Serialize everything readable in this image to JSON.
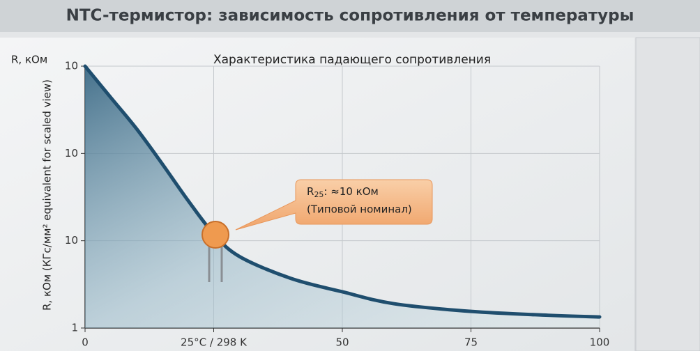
{
  "chart_data": {
    "type": "line",
    "title": "NTC-термистор: зависимость сопротивления от температуры",
    "subtitle": "Характеристика падающего сопротивления",
    "y_corner_label": "R, кОм",
    "y_label": "R, кОм (КГс/мм² equivalent for scaled view)",
    "x": [
      0,
      5,
      10,
      15,
      20,
      25,
      30,
      40,
      50,
      60,
      75,
      90,
      100
    ],
    "series": [
      {
        "color": "#1f4e6e",
        "values": [
          1000,
          437,
          192,
          76,
          29,
          12,
          6.6,
          3.7,
          2.6,
          1.9,
          1.55,
          1.4,
          1.34
        ]
      }
    ],
    "xlim": [
      0,
      100
    ],
    "xticks": [
      0,
      {
        "value": 25,
        "label": "25°C / 298 K"
      },
      50,
      75,
      100
    ],
    "ylim": [
      1,
      1000
    ],
    "yscale": "log",
    "yticks": [
      {
        "value": 1000,
        "label": "10"
      },
      {
        "value": 100,
        "label": "10"
      },
      10,
      1
    ],
    "grid": true,
    "annotation": {
      "symbol": "R",
      "subscript": "25",
      "text": ": ≈10 кОм",
      "note": "(Типовой номинал)"
    }
  }
}
